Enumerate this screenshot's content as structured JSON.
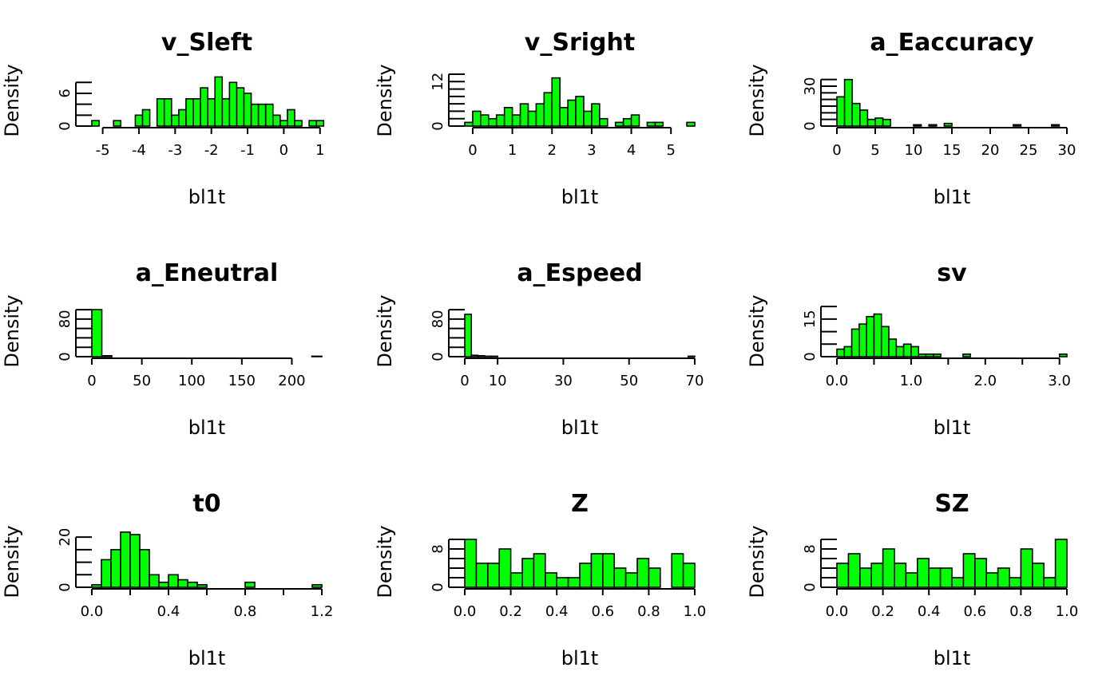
{
  "colors": {
    "bar_fill": "#00ff00",
    "bar_stroke": "#000000",
    "background": "#ffffff"
  },
  "chart_data": [
    {
      "type": "bar",
      "title": "v_Sleft",
      "xlabel": "bl1t",
      "ylabel": "Density",
      "xlim": [
        -5.3,
        1.05
      ],
      "ylim": [
        0,
        9.5
      ],
      "xticks": [
        -5,
        -4,
        -3,
        -2,
        -1,
        0,
        1
      ],
      "xtick_labels": [
        "-5",
        "-4",
        "-3",
        "-2",
        "-1",
        "0",
        "1"
      ],
      "yticks": [
        0,
        6
      ],
      "ytick_labels": [
        "0",
        "6"
      ],
      "yminor": [
        2,
        4,
        6,
        8
      ],
      "bin_start": -5.3,
      "bin_width": 0.2,
      "values": [
        1,
        0,
        0,
        1,
        0,
        0,
        2,
        3,
        0,
        5,
        5,
        2,
        3,
        5,
        5,
        7,
        5,
        9,
        5,
        8,
        7,
        6,
        4,
        4,
        4,
        2,
        1,
        3,
        1,
        0,
        1,
        1
      ]
    },
    {
      "type": "bar",
      "title": "v_Sright",
      "xlabel": "bl1t",
      "ylabel": "Density",
      "xlim": [
        -0.2,
        5.6
      ],
      "ylim": [
        0,
        14
      ],
      "xticks": [
        0,
        1,
        2,
        3,
        4,
        5
      ],
      "xtick_labels": [
        "0",
        "1",
        "2",
        "3",
        "4",
        "5"
      ],
      "yticks": [
        0,
        12
      ],
      "ytick_labels": [
        "0",
        "12"
      ],
      "yminor": [
        2,
        4,
        6,
        8,
        10,
        12,
        14
      ],
      "bin_start": -0.2,
      "bin_width": 0.2,
      "values": [
        1,
        4,
        3,
        2,
        3,
        5,
        3,
        6,
        4,
        6,
        9,
        13,
        5,
        7,
        8,
        4,
        6,
        2,
        0,
        1,
        2,
        3,
        0,
        1,
        1,
        0,
        0,
        0,
        1
      ]
    },
    {
      "type": "bar",
      "title": "a_Eaccuracy",
      "xlabel": "bl1t",
      "ylabel": "Density",
      "xlim": [
        0,
        30
      ],
      "ylim": [
        0,
        39
      ],
      "xticks": [
        0,
        5,
        10,
        15,
        20,
        25,
        30
      ],
      "xtick_labels": [
        "0",
        "5",
        "10",
        "15",
        "20",
        "25",
        "30"
      ],
      "yticks": [
        0,
        30
      ],
      "ytick_labels": [
        "0",
        "30"
      ],
      "yminor": [
        5,
        10,
        15,
        20,
        25,
        30,
        35
      ],
      "bin_start": 0,
      "bin_width": 1,
      "values": [
        22,
        35,
        17,
        12,
        5,
        6,
        5,
        0,
        0,
        0,
        1,
        0,
        1,
        0,
        2,
        0,
        0,
        0,
        0,
        0,
        0,
        0,
        0,
        1,
        0,
        0,
        0,
        0,
        1,
        0
      ]
    },
    {
      "type": "bar",
      "title": "a_Eneutral",
      "xlabel": "bl1t",
      "ylabel": "Density",
      "xlim": [
        0,
        230
      ],
      "ylim": [
        0,
        112
      ],
      "xticks": [
        0,
        50,
        100,
        150,
        200
      ],
      "xtick_labels": [
        "0",
        "50",
        "100",
        "150",
        "200"
      ],
      "yticks": [
        0,
        80
      ],
      "ytick_labels": [
        "0",
        "80"
      ],
      "yminor": [
        20,
        40,
        60,
        80,
        100
      ],
      "bin_start": 0,
      "bin_width": 10,
      "values": [
        100,
        2,
        0,
        0,
        0,
        0,
        0,
        0,
        0,
        0,
        0,
        0,
        0,
        0,
        0,
        0,
        0,
        0,
        0,
        0,
        0,
        0,
        1
      ]
    },
    {
      "type": "bar",
      "title": "a_Espeed",
      "xlabel": "bl1t",
      "ylabel": "Density",
      "xlim": [
        0,
        70
      ],
      "ylim": [
        0,
        112
      ],
      "xticks": [
        0,
        10,
        30,
        50,
        70
      ],
      "xtick_labels": [
        "0",
        "10",
        "30",
        "50",
        "70"
      ],
      "yticks": [
        0,
        80
      ],
      "ytick_labels": [
        "0",
        "80"
      ],
      "yminor": [
        20,
        40,
        60,
        80,
        100
      ],
      "bin_start": 0,
      "bin_width": 2,
      "values": [
        90,
        3,
        2,
        1,
        1,
        0,
        0,
        0,
        0,
        0,
        0,
        0,
        0,
        0,
        0,
        0,
        0,
        0,
        0,
        0,
        0,
        0,
        0,
        0,
        0,
        0,
        0,
        0,
        0,
        0,
        0,
        0,
        0,
        0,
        1
      ]
    },
    {
      "type": "bar",
      "title": "sv",
      "xlabel": "bl1t",
      "ylabel": "Density",
      "xlim": [
        0,
        3.1
      ],
      "ylim": [
        0,
        21
      ],
      "xticks": [
        0.0,
        0.5,
        1.0,
        1.5,
        2.0,
        2.5,
        3.0
      ],
      "xtick_labels": [
        "0.0",
        "",
        "1.0",
        "",
        "2.0",
        "",
        "3.0"
      ],
      "yticks": [
        0,
        15
      ],
      "ytick_labels": [
        "0",
        "15"
      ],
      "yminor": [
        5,
        10,
        15,
        20
      ],
      "bin_start": 0,
      "bin_width": 0.1,
      "values": [
        3,
        4,
        11,
        13,
        16,
        17,
        12,
        7,
        4,
        5,
        4,
        1,
        1,
        1,
        0,
        0,
        0,
        1,
        0,
        0,
        0,
        0,
        0,
        0,
        0,
        0,
        0,
        0,
        0,
        0,
        1
      ]
    },
    {
      "type": "bar",
      "title": "t0",
      "xlabel": "bl1t",
      "ylabel": "Density",
      "xlim": [
        0,
        1.2
      ],
      "ylim": [
        0,
        21
      ],
      "xticks": [
        0.0,
        0.2,
        0.4,
        0.6,
        0.8,
        1.0,
        1.2
      ],
      "xtick_labels": [
        "0.0",
        "",
        "0.4",
        "",
        "0.8",
        "",
        "1.2"
      ],
      "yticks": [
        0,
        20
      ],
      "ytick_labels": [
        "0",
        "20"
      ],
      "yminor": [
        5,
        10,
        15,
        20
      ],
      "bin_start": 0,
      "bin_width": 0.05,
      "values": [
        1,
        11,
        15,
        22,
        21,
        15,
        5,
        2,
        5,
        3,
        2,
        1,
        0,
        0,
        0,
        0,
        2,
        0,
        0,
        0,
        0,
        0,
        0,
        1
      ]
    },
    {
      "type": "bar",
      "title": "Z",
      "xlabel": "bl1t",
      "ylabel": "Density",
      "xlim": [
        0,
        1
      ],
      "ylim": [
        0,
        11
      ],
      "xticks": [
        0.0,
        0.2,
        0.4,
        0.6,
        0.8,
        1.0
      ],
      "xtick_labels": [
        "0.0",
        "0.2",
        "0.4",
        "0.6",
        "0.8",
        "1.0"
      ],
      "yticks": [
        0,
        8
      ],
      "ytick_labels": [
        "0",
        "8"
      ],
      "yminor": [
        2,
        4,
        6,
        8,
        10
      ],
      "bin_start": 0,
      "bin_width": 0.05,
      "values": [
        10,
        5,
        5,
        8,
        3,
        6,
        7,
        3,
        2,
        2,
        5,
        7,
        7,
        4,
        3,
        6,
        4,
        0,
        7,
        5
      ]
    },
    {
      "type": "bar",
      "title": "SZ",
      "xlabel": "bl1t",
      "ylabel": "Density",
      "xlim": [
        0,
        1
      ],
      "ylim": [
        0,
        11
      ],
      "xticks": [
        0.0,
        0.2,
        0.4,
        0.6,
        0.8,
        1.0
      ],
      "xtick_labels": [
        "0.0",
        "0.2",
        "0.4",
        "0.6",
        "0.8",
        "1.0"
      ],
      "yticks": [
        0,
        8
      ],
      "ytick_labels": [
        "0",
        "8"
      ],
      "yminor": [
        2,
        4,
        6,
        8,
        10
      ],
      "bin_start": 0,
      "bin_width": 0.05,
      "values": [
        5,
        7,
        4,
        5,
        8,
        5,
        3,
        6,
        4,
        4,
        2,
        7,
        6,
        3,
        4,
        2,
        8,
        5,
        2,
        10
      ]
    }
  ]
}
